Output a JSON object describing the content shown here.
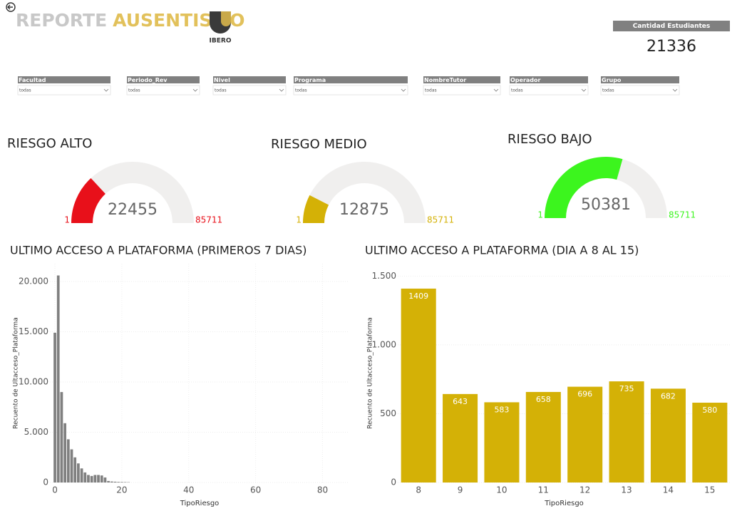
{
  "header": {
    "title_part1": "REPORTE",
    "title_part2": "AUSENTISMO",
    "logo_text": "IBERO"
  },
  "card": {
    "label": "Cantidad Estudiantes",
    "value": 21336
  },
  "filters": [
    {
      "label": "Facultad",
      "value": "Todas"
    },
    {
      "label": "Periodo_Rev",
      "value": "Todas"
    },
    {
      "label": "Nivel",
      "value": "Todas"
    },
    {
      "label": "Programa",
      "value": "Todas"
    },
    {
      "label": "NombreTutor",
      "value": "Todas"
    },
    {
      "label": "Operador",
      "value": "Todas"
    },
    {
      "label": "Grupo",
      "value": "Todas"
    }
  ],
  "gauges": [
    {
      "title": "RIESGO ALTO",
      "value": 22455,
      "min": 1,
      "max": 85711,
      "color": "#e8101a"
    },
    {
      "title": "RIESGO MEDIO",
      "value": 12875,
      "min": 1,
      "max": 85711,
      "color": "#d4b106"
    },
    {
      "title": "RIESGO BAJO",
      "value": 50381,
      "min": 1,
      "max": 85711,
      "color": "#3cf51e"
    }
  ],
  "chart_data": [
    {
      "type": "bar",
      "title": "ULTIMO ACCESO A PLATAFORMA (PRIMEROS 7 DIAS)",
      "x_label": "TipoRiesgo",
      "y_label": "Recuento de Ultacceso_Plataforma",
      "color": "#808080",
      "x": [
        0,
        1,
        2,
        3,
        4,
        5,
        6,
        7,
        8,
        9,
        10,
        11,
        12,
        13,
        14,
        15,
        16,
        17,
        18,
        19,
        20,
        21,
        22
      ],
      "values": [
        14900,
        20600,
        9000,
        5900,
        4300,
        3300,
        2500,
        1900,
        1400,
        1000,
        750,
        650,
        750,
        750,
        700,
        500,
        150,
        100,
        80,
        60,
        50,
        40,
        30
      ],
      "xlim": [
        -1.5,
        88
      ],
      "xticks": [
        0,
        20,
        40,
        60,
        80
      ],
      "ylim": [
        0,
        21770
      ],
      "yticks": [
        0,
        {
          "value": 5000,
          "label": "5.000"
        },
        {
          "value": 10000,
          "label": "10.000"
        },
        {
          "value": 15000,
          "label": "15.000"
        },
        {
          "value": 20000,
          "label": "20.000"
        }
      ],
      "grid": true
    },
    {
      "type": "bar",
      "title": "ULTIMO ACCESO A PLATAFORMA (DIA A 8 AL 15)",
      "x_label": "TipoRiesgo",
      "y_label": "Recuento de Ultacceso_Plataforma",
      "color": "#d4b106",
      "categories": [
        "8",
        "9",
        "10",
        "11",
        "12",
        "13",
        "14",
        "15"
      ],
      "values": [
        1409,
        643,
        583,
        658,
        696,
        735,
        682,
        580
      ],
      "ylim": [
        0,
        1590
      ],
      "yticks": [
        0,
        500,
        {
          "value": 1000,
          "label": "1.000"
        },
        {
          "value": 1500,
          "label": "1.500"
        }
      ],
      "grid": true
    }
  ]
}
